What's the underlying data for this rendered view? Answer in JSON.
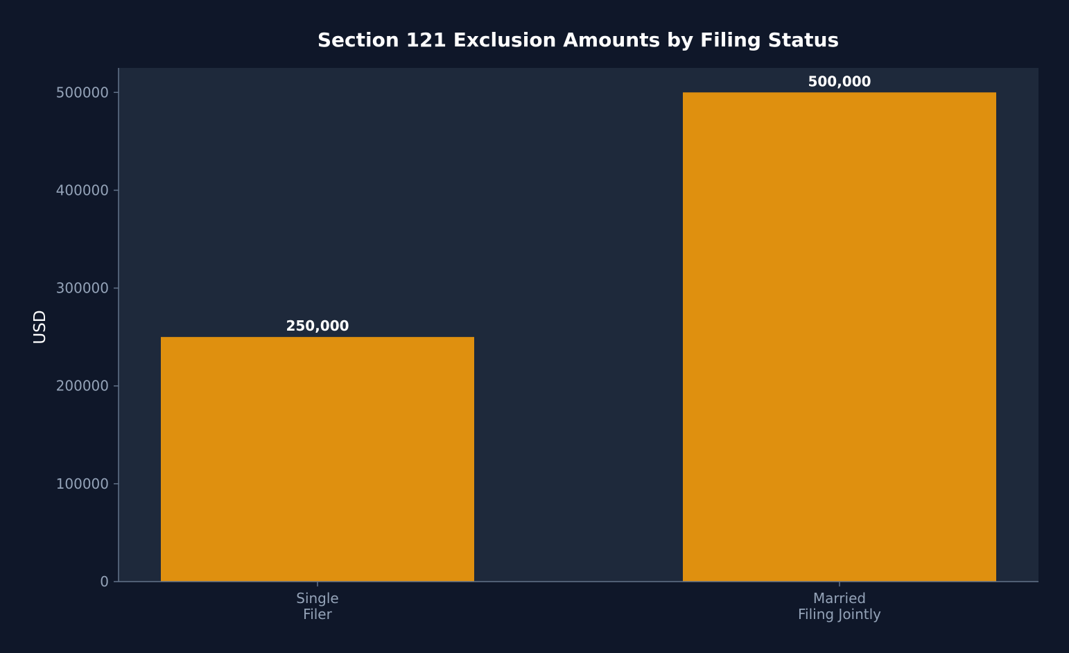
{
  "chart_data": {
    "type": "bar",
    "title": "Section 121 Exclusion Amounts by Filing Status",
    "xlabel": "",
    "ylabel": "USD",
    "categories": [
      [
        "Single",
        "Filer"
      ],
      [
        "Married",
        "Filing Jointly"
      ]
    ],
    "values": [
      250000,
      500000
    ],
    "data_labels": [
      "250,000",
      "500,000"
    ],
    "ylim": [
      0,
      525000
    ],
    "yticks": [
      0,
      100000,
      200000,
      300000,
      400000,
      500000
    ],
    "ytick_labels": [
      "0",
      "100000",
      "200000",
      "300000",
      "400000",
      "500000"
    ],
    "grid": false,
    "legend": "none",
    "colors": {
      "page_background": "#0f1729",
      "plot_background": "#1e293b",
      "bar": "#df900f",
      "axis": "#64748b",
      "tick_text": "#94a3b8",
      "title_text": "#ffffff"
    }
  }
}
